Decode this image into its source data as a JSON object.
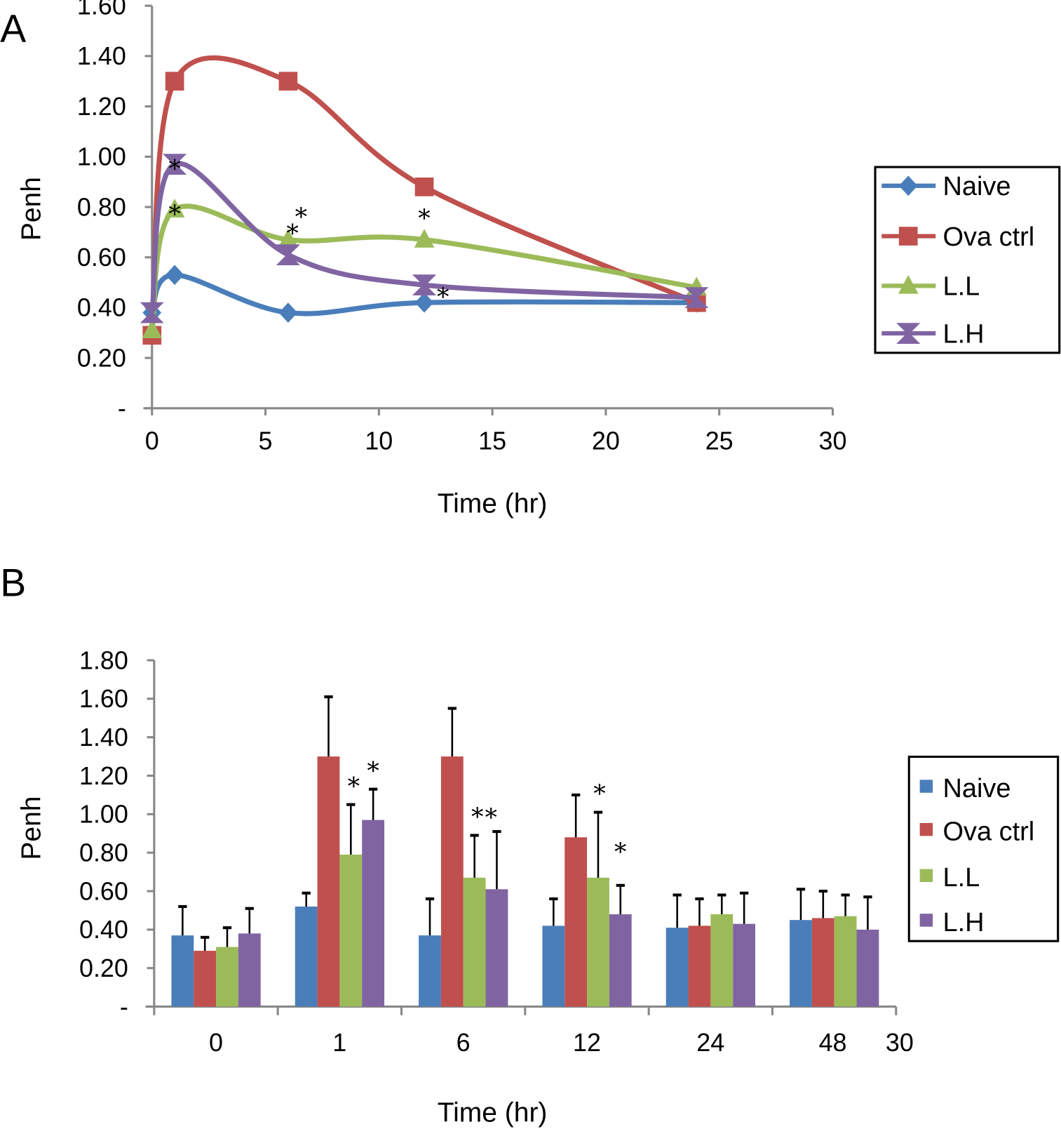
{
  "colors": {
    "Naive": "#4a7ebb",
    "Ova ctrl": "#c0504d",
    "L.L": "#9bbb59",
    "L.H": "#8064a2",
    "axis": "#888888"
  },
  "chart_data": [
    {
      "panel": "A",
      "type": "line",
      "smooth": true,
      "xlabel": "Time (hr)",
      "ylabel": "Penh",
      "xlim": [
        0,
        30
      ],
      "ylim": [
        0,
        1.6
      ],
      "xticks": [
        "0",
        "5",
        "10",
        "15",
        "20",
        "25",
        "30"
      ],
      "yticks": [
        "-",
        "0.20",
        "0.40",
        "0.60",
        "0.80",
        "1.00",
        "1.20",
        "1.40",
        "1.60"
      ],
      "x": [
        0,
        1,
        6,
        12,
        24
      ],
      "legend": "right",
      "series": [
        {
          "name": "Naive",
          "marker": "diamond",
          "values": [
            0.38,
            0.53,
            0.38,
            0.42,
            0.42
          ],
          "significant": [
            false,
            false,
            false,
            false,
            false
          ]
        },
        {
          "name": "Ova ctrl",
          "marker": "square",
          "values": [
            0.29,
            1.3,
            1.3,
            0.88,
            0.42
          ],
          "significant": [
            false,
            false,
            false,
            false,
            false
          ]
        },
        {
          "name": "L.L",
          "marker": "triangle",
          "values": [
            0.31,
            0.79,
            0.67,
            0.67,
            0.48
          ],
          "significant": [
            false,
            true,
            true,
            true,
            false
          ]
        },
        {
          "name": "L.H",
          "marker": "hourglass",
          "values": [
            0.38,
            0.97,
            0.61,
            0.49,
            0.44
          ],
          "significant": [
            false,
            true,
            true,
            true,
            false
          ]
        }
      ],
      "annotation": "*"
    },
    {
      "panel": "B",
      "type": "bar",
      "xlabel": "Time (hr)",
      "ylabel": "Penh",
      "ylim": [
        0,
        1.8
      ],
      "categories": [
        "0",
        "1",
        "6",
        "12",
        "24",
        "48"
      ],
      "extra_tick_label": "30",
      "yticks": [
        "-",
        "0.20",
        "0.40",
        "0.60",
        "0.80",
        "1.00",
        "1.20",
        "1.40",
        "1.60",
        "1.80"
      ],
      "legend": "right",
      "series": [
        {
          "name": "Naive",
          "values": [
            0.37,
            0.52,
            0.37,
            0.42,
            0.41,
            0.45
          ],
          "errors": [
            0.15,
            0.07,
            0.19,
            0.14,
            0.17,
            0.16
          ],
          "significant": [
            false,
            false,
            false,
            false,
            false,
            false
          ]
        },
        {
          "name": "Ova ctrl",
          "values": [
            0.29,
            1.3,
            1.3,
            0.88,
            0.42,
            0.46
          ],
          "errors": [
            0.07,
            0.31,
            0.25,
            0.22,
            0.14,
            0.14
          ],
          "significant": [
            false,
            false,
            false,
            false,
            false,
            false
          ]
        },
        {
          "name": "L.L",
          "values": [
            0.31,
            0.79,
            0.67,
            0.67,
            0.48,
            0.47
          ],
          "errors": [
            0.1,
            0.26,
            0.22,
            0.34,
            0.1,
            0.11
          ],
          "significant": [
            false,
            true,
            true,
            true,
            false,
            false
          ]
        },
        {
          "name": "L.H",
          "values": [
            0.38,
            0.97,
            0.61,
            0.48,
            0.43,
            0.4
          ],
          "errors": [
            0.13,
            0.16,
            0.3,
            0.15,
            0.16,
            0.17
          ],
          "significant": [
            false,
            true,
            true,
            true,
            false,
            false
          ]
        }
      ],
      "annotation": "*"
    }
  ]
}
